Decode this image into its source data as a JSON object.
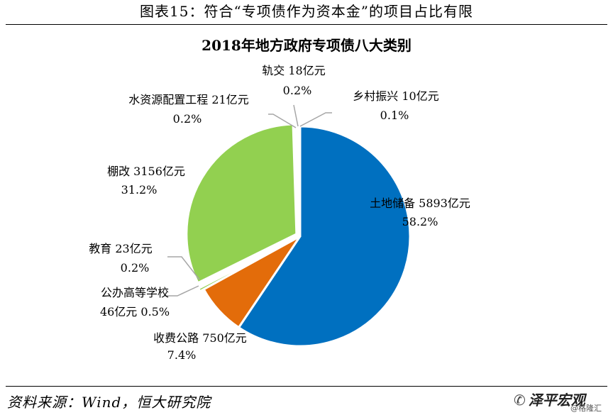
{
  "figure": {
    "header": "图表15：符合“专项债作为资本金”的项目占比有限",
    "source": "资料来源：Wind，恒大研究院",
    "brand": "泽平宏观",
    "watermark": "@格隆汇"
  },
  "chart_data": {
    "type": "pie",
    "title": "2018年地方政府专项债八大类别",
    "unit": "亿元",
    "slices": [
      {
        "name": "土地储备",
        "value": 5893,
        "value_label": "5893亿元",
        "percent": "58.2%",
        "color": "#0070C0"
      },
      {
        "name": "收费公路",
        "value": 750,
        "value_label": "750亿元",
        "percent": "7.4%",
        "color": "#E36C0A"
      },
      {
        "name": "公办高等学校",
        "value": 46,
        "value_label": "46亿元",
        "percent": "0.5%",
        "color": "#92D050"
      },
      {
        "name": "教育",
        "value": 23,
        "value_label": "23亿元",
        "percent": "0.2%",
        "color": "#92D050"
      },
      {
        "name": "棚改",
        "value": 3156,
        "value_label": "3156亿元",
        "percent": "31.2%",
        "color": "#92D050"
      },
      {
        "name": "水资源配置工程",
        "value": 21,
        "value_label": "21亿元",
        "percent": "0.2%",
        "color": "#92D050"
      },
      {
        "name": "轨交",
        "value": 18,
        "value_label": "18亿元",
        "percent": "0.2%",
        "color": "#92D050"
      },
      {
        "name": "乡村振兴",
        "value": 10,
        "value_label": "10亿元",
        "percent": "0.1%",
        "color": "#92D050"
      }
    ]
  }
}
